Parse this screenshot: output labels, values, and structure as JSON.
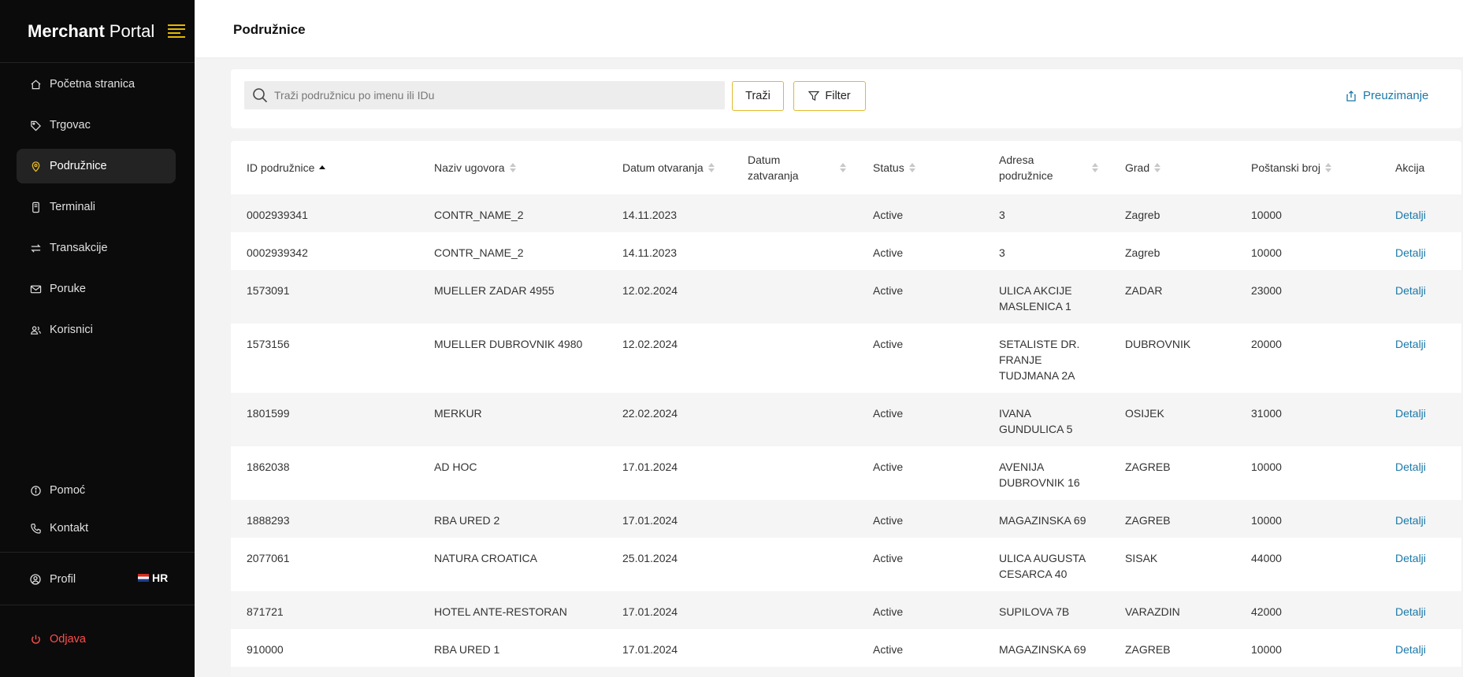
{
  "brand": {
    "bold": "Merchant",
    "light": "Portal"
  },
  "sidebar": {
    "items": [
      {
        "label": "Početna stranica",
        "icon": "home-icon"
      },
      {
        "label": "Trgovac",
        "icon": "tag-icon"
      },
      {
        "label": "Podružnice",
        "icon": "location-pin-icon",
        "active": true
      },
      {
        "label": "Terminali",
        "icon": "terminal-icon"
      },
      {
        "label": "Transakcije",
        "icon": "transfer-arrows-icon"
      },
      {
        "label": "Poruke",
        "icon": "mail-icon"
      },
      {
        "label": "Korisnici",
        "icon": "users-icon"
      }
    ],
    "help": "Pomoć",
    "contact": "Kontakt",
    "profile": "Profil",
    "language": "HR",
    "logout": "Odjava"
  },
  "header": {
    "title": "Podružnice"
  },
  "search": {
    "placeholder": "Traži podružnicu po imenu ili IDu",
    "search_label": "Traži",
    "filter_label": "Filter",
    "download_label": "Preuzimanje"
  },
  "table": {
    "columns": {
      "id": "ID podružnice",
      "contract": "Naziv ugovora",
      "opened": "Datum otvaranja",
      "closed_l1": "Datum",
      "closed_l2": "zatvaranja",
      "status": "Status",
      "address_l1": "Adresa",
      "address_l2": "podružnice",
      "city": "Grad",
      "postal": "Poštanski broj",
      "action": "Akcija"
    },
    "rows": [
      {
        "id": "0002939341",
        "contract": "CONTR_NAME_2",
        "opened": "14.11.2023",
        "closed": "",
        "status": "Active",
        "address": "3",
        "city": "Zagreb",
        "postal": "10000",
        "action": "Detalji"
      },
      {
        "id": "0002939342",
        "contract": "CONTR_NAME_2",
        "opened": "14.11.2023",
        "closed": "",
        "status": "Active",
        "address": "3",
        "city": "Zagreb",
        "postal": "10000",
        "action": "Detalji"
      },
      {
        "id": "1573091",
        "contract": "MUELLER ZADAR 4955",
        "opened": "12.02.2024",
        "closed": "",
        "status": "Active",
        "address": "ULICA AKCIJE MASLENICA 1",
        "city": "ZADAR",
        "postal": "23000",
        "action": "Detalji"
      },
      {
        "id": "1573156",
        "contract": "MUELLER DUBROVNIK 4980",
        "opened": "12.02.2024",
        "closed": "",
        "status": "Active",
        "address": "SETALISTE DR. FRANJE TUDJMANA 2A",
        "city": "DUBROVNIK",
        "postal": "20000",
        "action": "Detalji"
      },
      {
        "id": "1801599",
        "contract": "MERKUR",
        "opened": "22.02.2024",
        "closed": "",
        "status": "Active",
        "address": "IVANA GUNDULICA 5",
        "city": "OSIJEK",
        "postal": "31000",
        "action": "Detalji"
      },
      {
        "id": "1862038",
        "contract": "AD HOC",
        "opened": "17.01.2024",
        "closed": "",
        "status": "Active",
        "address": "AVENIJA DUBROVNIK 16",
        "city": "ZAGREB",
        "postal": "10000",
        "action": "Detalji"
      },
      {
        "id": "1888293",
        "contract": "RBA URED 2",
        "opened": "17.01.2024",
        "closed": "",
        "status": "Active",
        "address": "MAGAZINSKA 69",
        "city": "ZAGREB",
        "postal": "10000",
        "action": "Detalji"
      },
      {
        "id": "2077061",
        "contract": "NATURA CROATICA",
        "opened": "25.01.2024",
        "closed": "",
        "status": "Active",
        "address": "ULICA AUGUSTA CESARCA 40",
        "city": "SISAK",
        "postal": "44000",
        "action": "Detalji"
      },
      {
        "id": "871721",
        "contract": "HOTEL ANTE-RESTORAN",
        "opened": "17.01.2024",
        "closed": "",
        "status": "Active",
        "address": "SUPILOVA 7B",
        "city": "VARAZDIN",
        "postal": "42000",
        "action": "Detalji"
      },
      {
        "id": "910000",
        "contract": "RBA URED 1",
        "opened": "17.01.2024",
        "closed": "",
        "status": "Active",
        "address": "MAGAZINSKA 69",
        "city": "ZAGREB",
        "postal": "10000",
        "action": "Detalji"
      }
    ]
  },
  "colors": {
    "accent": "#e0b92c",
    "link": "#1a78a8",
    "logout": "#ff4d4d",
    "sidebar_bg": "#0b0b0b"
  }
}
